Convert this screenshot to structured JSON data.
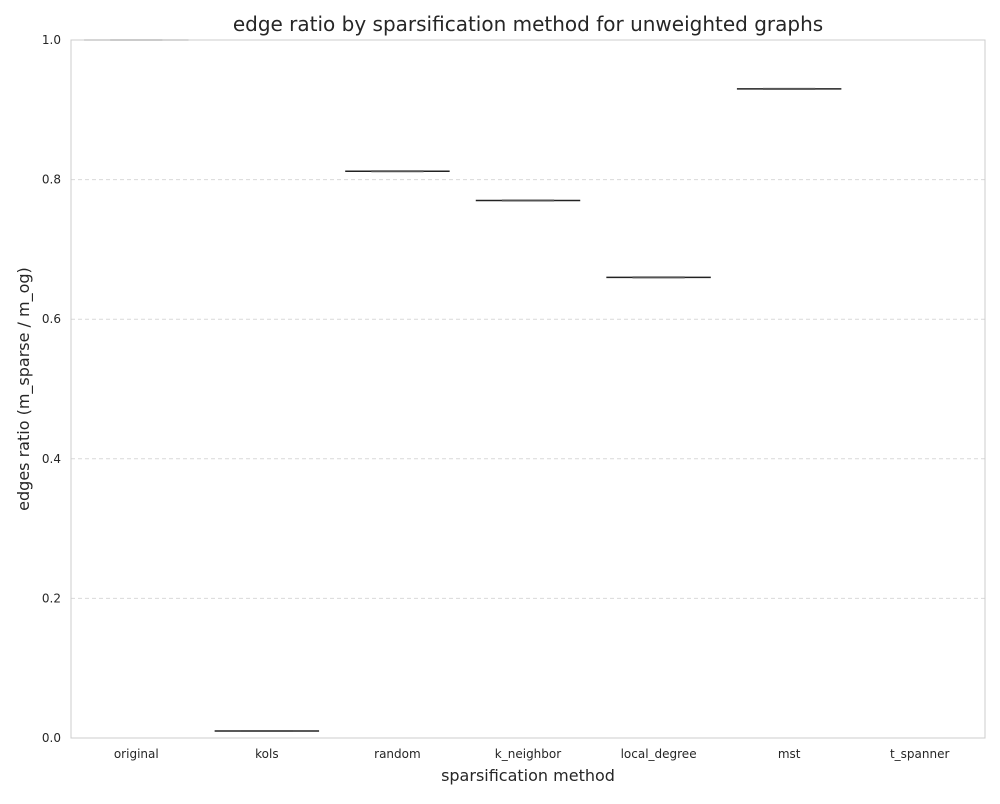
{
  "chart_data": {
    "type": "box",
    "title": "edge ratio by sparsification method for unweighted graphs",
    "xlabel": "sparsification method",
    "ylabel": "edges ratio (m_sparse / m_og)",
    "ylim": [
      0.0,
      1.0
    ],
    "yticks": [
      "0.0",
      "0.2",
      "0.4",
      "0.6",
      "0.8",
      "1.0"
    ],
    "grid": "y-dashed",
    "categories": [
      "original",
      "kols",
      "random",
      "k_neighbor",
      "local_degree",
      "mst",
      "t_spanner"
    ],
    "values": [
      1.0,
      0.01,
      0.812,
      0.77,
      0.66,
      0.93,
      null
    ],
    "box_color": "#222222",
    "original_color": "#888888",
    "grid_color": "#d9d9d9",
    "frame_color": "#cccccc"
  }
}
